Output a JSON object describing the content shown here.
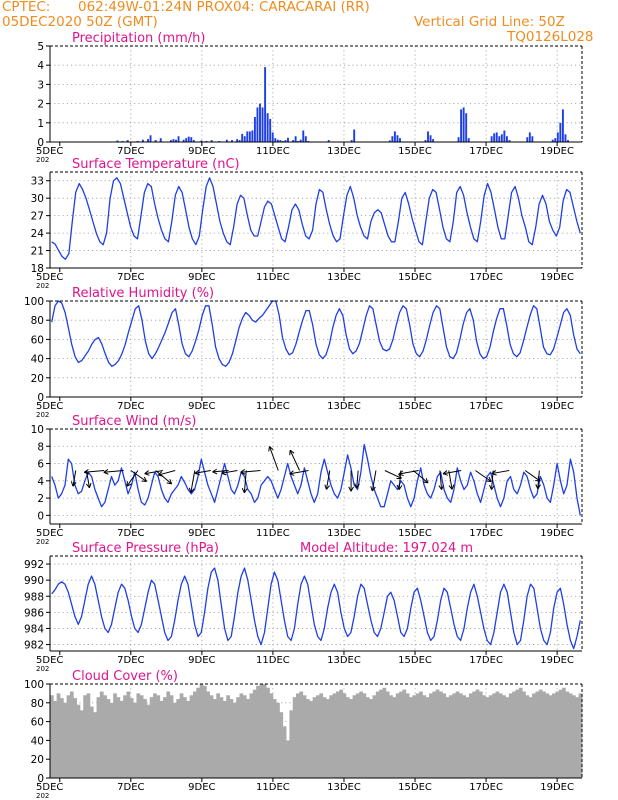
{
  "header": {
    "source": "CPTEC:",
    "location": "062:49W-01:24N   PROX04: CARACARAI (RR)",
    "run_time": "05DEC2020 50Z (GMT)",
    "grid_note": "Vertical Grid Line: 50Z",
    "code": "TQ0126L028"
  },
  "colors": {
    "header": "#f08c1e",
    "title": "#e0148c",
    "series": "#1f3fe6",
    "grid": "#9a9a9a",
    "cloud": "#aaaaaa",
    "arrow": "#000000"
  },
  "x_tick_labels": [
    "5DEC",
    "7DEC",
    "9DEC",
    "11DEC",
    "13DEC",
    "15DEC",
    "17DEC",
    "19DEC"
  ],
  "panel_year_label": "202",
  "chart_data": [
    {
      "id": "precip",
      "type": "bar",
      "title": "Precipitation (mm/h)",
      "ylim": [
        0,
        5
      ],
      "yticks": [
        0,
        1,
        2,
        3,
        4,
        5
      ],
      "ytick_labels": [
        "0",
        "1",
        "2",
        "3",
        "4",
        "5"
      ],
      "grid": true,
      "values": [
        0,
        0,
        0,
        0,
        0,
        0,
        0,
        0,
        0,
        0,
        0,
        0,
        0,
        0,
        0,
        0,
        0,
        0,
        0,
        0,
        0,
        0,
        0,
        0,
        0,
        0,
        0.08,
        0,
        0.05,
        0,
        0.1,
        0,
        0,
        0,
        0.05,
        0,
        0.12,
        0,
        0.15,
        0.35,
        0,
        0.1,
        0,
        0.2,
        0,
        0,
        0,
        0.1,
        0.15,
        0.12,
        0.3,
        0,
        0.12,
        0.2,
        0.28,
        0.25,
        0.1,
        0,
        0,
        0.08,
        0,
        0.05,
        0,
        0.1,
        0,
        0,
        0.05,
        0,
        0,
        0.12,
        0,
        0.1,
        0,
        0.15,
        0.1,
        0.42,
        0.3,
        0.55,
        0.55,
        0.6,
        1.3,
        1.8,
        2.0,
        1.8,
        3.9,
        1.5,
        1.2,
        0.5,
        0.2,
        0.12,
        0.1,
        0.05,
        0.1,
        0.22,
        0,
        0.1,
        0.3,
        0.05,
        0.12,
        0.6,
        0.3,
        0.05,
        0,
        0,
        0,
        0,
        0,
        0,
        0,
        0.1,
        0,
        0,
        0,
        0,
        0,
        0,
        0,
        0,
        0.1,
        0.65,
        0,
        0,
        0,
        0,
        0,
        0,
        0,
        0,
        0,
        0,
        0,
        0,
        0,
        0.08,
        0.3,
        0.55,
        0.35,
        0.2,
        0,
        0,
        0,
        0,
        0,
        0,
        0,
        0,
        0,
        0.1,
        0.55,
        0.35,
        0.15,
        0,
        0,
        0,
        0,
        0,
        0,
        0,
        0,
        0,
        0.25,
        1.7,
        1.8,
        1.5,
        0.2,
        0,
        0,
        0,
        0,
        0,
        0,
        0,
        0,
        0.3,
        0.45,
        0.5,
        0.3,
        0.4,
        0.6,
        0.3,
        0.1,
        0,
        0,
        0,
        0,
        0,
        0,
        0.25,
        0.5,
        0.3,
        0,
        0,
        0,
        0,
        0,
        0,
        0,
        0.12,
        0.2,
        0.5,
        1.0,
        1.7,
        0.4,
        0.1,
        0,
        0,
        0,
        0,
        0
      ]
    },
    {
      "id": "temp",
      "type": "line",
      "title": "Surface Temperature (nC)",
      "ylim": [
        18,
        34.5
      ],
      "yticks": [
        18,
        21,
        24,
        27,
        30,
        33
      ],
      "ytick_labels": [
        "18",
        "21",
        "24",
        "27",
        "30",
        "33"
      ],
      "grid": true,
      "values": [
        22.5,
        22.1,
        21.0,
        20.0,
        19.5,
        20.5,
        26.0,
        31.0,
        32.5,
        31.5,
        30.0,
        28.0,
        26.0,
        24.0,
        22.5,
        22.0,
        24.0,
        30.0,
        33.0,
        33.5,
        32.5,
        30.0,
        27.5,
        25.0,
        23.5,
        23.0,
        27.0,
        31.0,
        32.5,
        32.0,
        29.0,
        26.5,
        24.5,
        23.0,
        22.5,
        26.0,
        30.5,
        32.0,
        31.0,
        28.0,
        25.0,
        23.0,
        22.0,
        23.5,
        28.0,
        32.0,
        33.5,
        32.0,
        29.0,
        26.0,
        24.0,
        22.5,
        22.0,
        25.0,
        29.0,
        30.5,
        30.0,
        27.0,
        24.5,
        23.5,
        23.5,
        26.0,
        28.5,
        29.5,
        29.0,
        27.0,
        25.0,
        23.0,
        22.5,
        25.0,
        28.0,
        29.0,
        28.0,
        25.5,
        23.5,
        23.0,
        24.5,
        29.0,
        31.5,
        31.0,
        28.0,
        25.5,
        23.5,
        22.5,
        23.0,
        27.0,
        30.5,
        32.0,
        30.0,
        27.0,
        25.0,
        23.5,
        23.0,
        26.0,
        27.5,
        28.0,
        27.5,
        25.5,
        23.5,
        22.5,
        22.5,
        26.0,
        30.0,
        31.0,
        29.0,
        26.5,
        24.5,
        22.5,
        22.0,
        26.0,
        30.0,
        31.5,
        31.0,
        28.0,
        25.0,
        23.0,
        22.5,
        26.0,
        31.0,
        32.0,
        30.5,
        27.5,
        25.0,
        23.0,
        22.5,
        26.0,
        30.5,
        32.5,
        31.0,
        28.0,
        25.0,
        23.0,
        23.0,
        27.0,
        31.0,
        32.0,
        30.0,
        27.0,
        25.0,
        22.5,
        22.0,
        25.0,
        29.0,
        30.5,
        29.0,
        26.0,
        24.5,
        23.5,
        25.0,
        29.5,
        31.5,
        31.0,
        28.5,
        26.0,
        24.0
      ]
    },
    {
      "id": "rh",
      "type": "line",
      "title": "Relative Humidity (%)",
      "ylim": [
        0,
        100
      ],
      "yticks": [
        0,
        20,
        40,
        60,
        80,
        100
      ],
      "ytick_labels": [
        "0",
        "20",
        "40",
        "60",
        "80",
        "100"
      ],
      "grid": true,
      "values": [
        78,
        95,
        100,
        98,
        88,
        72,
        55,
        42,
        36,
        38,
        43,
        48,
        55,
        60,
        62,
        55,
        45,
        36,
        32,
        34,
        38,
        45,
        55,
        68,
        80,
        92,
        95,
        80,
        58,
        45,
        40,
        45,
        52,
        60,
        68,
        78,
        88,
        92,
        75,
        55,
        45,
        42,
        48,
        58,
        70,
        85,
        95,
        95,
        75,
        52,
        40,
        34,
        32,
        36,
        45,
        58,
        72,
        82,
        88,
        85,
        80,
        78,
        82,
        85,
        90,
        95,
        100,
        100,
        85,
        62,
        50,
        44,
        46,
        55,
        68,
        80,
        90,
        90,
        75,
        55,
        44,
        40,
        44,
        55,
        72,
        85,
        92,
        85,
        65,
        50,
        45,
        48,
        56,
        70,
        85,
        95,
        92,
        75,
        58,
        50,
        48,
        50,
        60,
        75,
        88,
        95,
        92,
        75,
        55,
        45,
        42,
        48,
        60,
        75,
        88,
        95,
        92,
        72,
        52,
        42,
        40,
        46,
        60,
        76,
        88,
        92,
        80,
        58,
        45,
        40,
        42,
        52,
        68,
        82,
        92,
        92,
        75,
        55,
        45,
        42,
        46,
        58,
        72,
        85,
        95,
        92,
        72,
        52,
        45,
        44,
        50,
        62,
        75,
        88,
        92,
        85,
        65,
        50,
        45
      ]
    },
    {
      "id": "wind",
      "type": "line",
      "title": "Surface Wind (m/s)",
      "ylim": [
        -1,
        10
      ],
      "yticks": [
        0,
        2,
        4,
        6,
        8,
        10
      ],
      "ytick_labels": [
        "0",
        "2",
        "4",
        "6",
        "8",
        "10"
      ],
      "grid": true,
      "values": [
        4.5,
        3.5,
        2.0,
        2.5,
        3.5,
        6.5,
        6.0,
        3.5,
        2.5,
        2.8,
        4.0,
        5.0,
        4.5,
        3.0,
        2.0,
        1.0,
        1.5,
        3.0,
        4.5,
        3.5,
        4.0,
        5.5,
        4.0,
        2.5,
        3.5,
        5.0,
        3.0,
        1.5,
        1.2,
        2.0,
        3.5,
        5.0,
        4.5,
        3.0,
        2.0,
        1.5,
        2.5,
        3.0,
        3.5,
        4.5,
        3.8,
        3.0,
        2.5,
        3.0,
        4.5,
        6.5,
        5.0,
        3.5,
        2.5,
        1.5,
        3.0,
        4.5,
        6.0,
        4.5,
        3.0,
        2.5,
        3.5,
        5.0,
        4.5,
        3.0,
        2.5,
        1.5,
        2.0,
        3.5,
        4.0,
        4.5,
        4.0,
        3.0,
        2.0,
        3.0,
        4.5,
        6.0,
        4.5,
        3.5,
        2.5,
        3.5,
        5.5,
        4.0,
        2.5,
        1.5,
        2.5,
        5.0,
        6.5,
        5.0,
        3.5,
        2.5,
        2.0,
        3.0,
        5.0,
        7.0,
        5.5,
        3.5,
        3.0,
        5.0,
        8.2,
        6.5,
        4.5,
        3.0,
        2.0,
        1.0,
        1.0,
        2.5,
        4.0,
        3.5,
        3.0,
        4.0,
        3.5,
        2.0,
        1.0,
        2.0,
        4.0,
        5.5,
        3.5,
        2.5,
        2.0,
        3.0,
        4.5,
        5.0,
        3.0,
        2.0,
        1.5,
        3.0,
        5.5,
        4.0,
        3.0,
        3.5,
        5.0,
        4.0,
        2.5,
        1.5,
        3.0,
        4.5,
        5.0,
        3.5,
        2.0,
        1.0,
        2.0,
        4.0,
        4.5,
        3.0,
        2.5,
        3.5,
        5.0,
        4.5,
        3.0,
        2.0,
        2.5,
        4.5,
        3.5,
        2.0,
        1.5,
        3.5,
        6.0,
        4.0,
        2.5,
        3.5,
        6.5,
        5.0,
        2.0,
        0.0
      ],
      "barbs": [
        {
          "t": 0.9,
          "spd": 2.0,
          "ang": -100
        },
        {
          "t": 1.5,
          "spd": 2.2,
          "ang": -80
        },
        {
          "t": 2.5,
          "spd": 2.5,
          "ang": -175
        },
        {
          "t": 3.6,
          "spd": 2.5,
          "ang": -175
        },
        {
          "t": 4.0,
          "spd": 2.4,
          "ang": -35
        },
        {
          "t": 4.4,
          "spd": 2.4,
          "ang": -125
        },
        {
          "t": 5.4,
          "spd": 2.6,
          "ang": -40
        },
        {
          "t": 5.8,
          "spd": 2.3,
          "ang": -170
        },
        {
          "t": 6.5,
          "spd": 2.2,
          "ang": -165
        },
        {
          "t": 7.6,
          "spd": 2.8,
          "ang": -100
        },
        {
          "t": 8.5,
          "spd": 2.0,
          "ang": -170
        },
        {
          "t": 9.5,
          "spd": 2.0,
          "ang": -175
        },
        {
          "t": 10.0,
          "spd": 2.0,
          "ang": -170
        },
        {
          "t": 10.5,
          "spd": 2.8,
          "ang": -95
        },
        {
          "t": 11.3,
          "spd": 2.5,
          "ang": -175
        },
        {
          "t": 12.3,
          "spd": 3.2,
          "ang": 110
        },
        {
          "t": 13.5,
          "spd": 2.8,
          "ang": 115
        },
        {
          "t": 14.0,
          "spd": 2.4,
          "ang": -170
        },
        {
          "t": 15.2,
          "spd": 2.4,
          "ang": -100
        },
        {
          "t": 16.4,
          "spd": 2.6,
          "ang": -90
        },
        {
          "t": 16.8,
          "spd": 2.2,
          "ang": -95
        },
        {
          "t": 17.8,
          "spd": 2.6,
          "ang": -100
        },
        {
          "t": 18.3,
          "spd": 2.3,
          "ang": -25
        },
        {
          "t": 19.2,
          "spd": 2.4,
          "ang": -95
        },
        {
          "t": 19.9,
          "spd": 2.4,
          "ang": -40
        },
        {
          "t": 20.2,
          "spd": 2.5,
          "ang": -170
        },
        {
          "t": 21.4,
          "spd": 2.4,
          "ang": -85
        },
        {
          "t": 21.9,
          "spd": 2.4,
          "ang": -80
        },
        {
          "t": 22.6,
          "spd": 2.3,
          "ang": -170
        },
        {
          "t": 23.4,
          "spd": 2.4,
          "ang": -35
        },
        {
          "t": 24.4,
          "spd": 2.4,
          "ang": -95
        },
        {
          "t": 25.3,
          "spd": 2.2,
          "ang": -170
        },
        {
          "t": 26.2,
          "spd": 2.3,
          "ang": -35
        },
        {
          "t": 27.0,
          "spd": 2.3,
          "ang": -95
        }
      ]
    },
    {
      "id": "pres",
      "type": "line",
      "title": "Surface Pressure (hPa)",
      "subtitle": "Model Altitude: 197.024 m",
      "ylim": [
        981.2,
        993
      ],
      "yticks": [
        982,
        984,
        986,
        988,
        990,
        992
      ],
      "ytick_labels": [
        "982",
        "984",
        "986",
        "988",
        "990",
        "992"
      ],
      "grid": true,
      "values": [
        988.3,
        988.8,
        989.5,
        989.8,
        989.5,
        988.5,
        987.0,
        985.5,
        984.5,
        985.5,
        987.5,
        989.5,
        990.5,
        989.5,
        987.5,
        985.5,
        984.0,
        983.5,
        984.5,
        986.5,
        988.5,
        989.5,
        989.0,
        987.5,
        985.5,
        984.0,
        983.5,
        984.5,
        986.5,
        988.5,
        990.0,
        989.5,
        987.5,
        985.5,
        983.5,
        982.5,
        983.0,
        985.0,
        987.5,
        989.5,
        990.5,
        989.5,
        987.0,
        984.5,
        983.0,
        983.5,
        986.0,
        989.0,
        991.0,
        991.5,
        990.0,
        987.0,
        984.0,
        982.5,
        983.0,
        985.5,
        988.5,
        990.5,
        991.5,
        990.0,
        987.5,
        985.0,
        983.0,
        982.0,
        983.5,
        986.5,
        989.5,
        991.0,
        990.0,
        987.5,
        985.0,
        983.0,
        982.5,
        984.0,
        987.0,
        989.5,
        990.5,
        989.5,
        987.0,
        984.5,
        983.0,
        982.5,
        984.0,
        986.5,
        988.5,
        989.5,
        988.5,
        986.0,
        984.0,
        983.0,
        983.5,
        985.5,
        988.0,
        989.5,
        989.0,
        987.0,
        985.0,
        983.5,
        983.0,
        984.0,
        986.0,
        988.0,
        988.5,
        987.5,
        985.5,
        983.5,
        983.0,
        984.0,
        986.5,
        988.5,
        989.0,
        987.5,
        985.5,
        983.5,
        982.5,
        983.0,
        985.0,
        987.5,
        989.0,
        988.5,
        986.5,
        984.5,
        983.0,
        982.5,
        984.0,
        986.5,
        988.5,
        989.5,
        988.0,
        986.0,
        984.0,
        982.5,
        982.0,
        983.5,
        986.0,
        988.5,
        989.5,
        988.5,
        986.0,
        983.5,
        982.0,
        982.5,
        985.0,
        988.0,
        989.5,
        989.0,
        986.5,
        984.0,
        982.5,
        982.0,
        983.5,
        986.5,
        988.5,
        989.0,
        987.0,
        984.5,
        982.5,
        981.5,
        983.0,
        985.0
      ]
    },
    {
      "id": "cloud",
      "type": "area",
      "title": "Cloud Cover (%)",
      "ylim": [
        0,
        100
      ],
      "yticks": [
        0,
        20,
        40,
        60,
        80,
        100
      ],
      "ytick_labels": [
        "0",
        "20",
        "40",
        "60",
        "80",
        "100"
      ],
      "grid": true,
      "values": [
        88,
        82,
        90,
        85,
        80,
        88,
        92,
        85,
        78,
        72,
        88,
        90,
        76,
        70,
        86,
        92,
        88,
        84,
        80,
        90,
        86,
        82,
        88,
        92,
        85,
        80,
        90,
        88,
        84,
        78,
        86,
        90,
        88,
        82,
        86,
        92,
        88,
        80,
        84,
        90,
        86,
        82,
        88,
        92,
        96,
        100,
        98,
        92,
        88,
        84,
        90,
        86,
        82,
        88,
        84,
        80,
        86,
        90,
        88,
        84,
        90,
        94,
        98,
        100,
        100,
        96,
        90,
        84,
        80,
        70,
        55,
        40,
        72,
        86,
        90,
        92,
        88,
        84,
        82,
        86,
        88,
        90,
        86,
        84,
        88,
        90,
        92,
        94,
        90,
        86,
        84,
        88,
        90,
        92,
        90,
        86,
        84,
        88,
        92,
        94,
        96,
        92,
        88,
        86,
        90,
        92,
        94,
        90,
        86,
        88,
        90,
        92,
        88,
        86,
        90,
        92,
        94,
        92,
        90,
        86,
        88,
        90,
        92,
        90,
        88,
        86,
        90,
        92,
        94,
        92,
        88,
        86,
        88,
        90,
        92,
        90,
        88,
        86,
        90,
        92,
        94,
        96,
        92,
        88,
        86,
        90,
        92,
        94,
        92,
        90,
        88,
        90,
        92,
        94,
        96,
        92,
        90,
        88,
        86,
        90
      ]
    }
  ]
}
